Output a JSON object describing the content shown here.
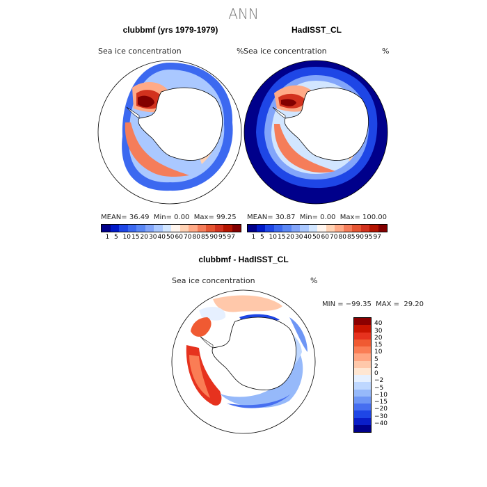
{
  "suptitle": "ANN",
  "panels": [
    {
      "title": "clubbmf (yrs 1979-1979)",
      "var": "Sea ice concentration",
      "unit": "%",
      "mean_label": "MEAN=",
      "mean": "36.49",
      "min_label": "Min=",
      "min": "0.00",
      "max_label": "Max=",
      "max": "99.25"
    },
    {
      "title": "HadISST_CL",
      "var": "Sea ice concentration",
      "unit": "%",
      "mean_label": "MEAN=",
      "mean": "30.87",
      "min_label": "Min=",
      "min": "0.00",
      "max_label": "Max=",
      "max": "100.00"
    }
  ],
  "diff": {
    "title": "clubbmf - HadISST_CL",
    "var": "Sea ice concentration",
    "unit": "%",
    "minmax": "MIN = −99.35  MAX =  29.20"
  },
  "colorbar_abs": {
    "levels": [
      "1",
      "5",
      "10",
      "15",
      "20",
      "30",
      "40",
      "50",
      "60",
      "70",
      "80",
      "85",
      "90",
      "95",
      "97"
    ],
    "colors": [
      "#00008b",
      "#0019c8",
      "#1e46e6",
      "#3c69f0",
      "#5a87f5",
      "#82a5fa",
      "#aac8ff",
      "#d2e6ff",
      "#fff5ee",
      "#ffd2b4",
      "#ffaa87",
      "#f57d5a",
      "#e65532",
      "#d2321e",
      "#b41400",
      "#820000"
    ]
  },
  "colorbar_diff": {
    "levels": [
      "40",
      "30",
      "20",
      "15",
      "10",
      "5",
      "2",
      "0",
      "−2",
      "−5",
      "−10",
      "−15",
      "−20",
      "−30",
      "−40"
    ],
    "colors": [
      "#8b0000",
      "#c81400",
      "#e6321e",
      "#f05a32",
      "#fa7d55",
      "#ffa582",
      "#ffc8aa",
      "#ffe6d2",
      "#e6f0ff",
      "#bed7ff",
      "#96b9fa",
      "#6e96f5",
      "#466ef0",
      "#1e46e6",
      "#0a1ec8",
      "#00008b"
    ]
  },
  "chart_data": [
    {
      "type": "polar-stereographic contour map",
      "title": "clubbmf (yrs 1979-1979)",
      "variable": "Sea ice concentration",
      "units": "%",
      "mean": 36.49,
      "min": 0.0,
      "max": 99.25
    },
    {
      "type": "polar-stereographic contour map",
      "title": "HadISST_CL",
      "variable": "Sea ice concentration",
      "units": "%",
      "mean": 30.87,
      "min": 0.0,
      "max": 100.0
    },
    {
      "type": "polar-stereographic contour map",
      "title": "clubbmf - HadISST_CL",
      "variable": "Sea ice concentration",
      "units": "%",
      "min": -99.35,
      "max": 29.2
    }
  ]
}
